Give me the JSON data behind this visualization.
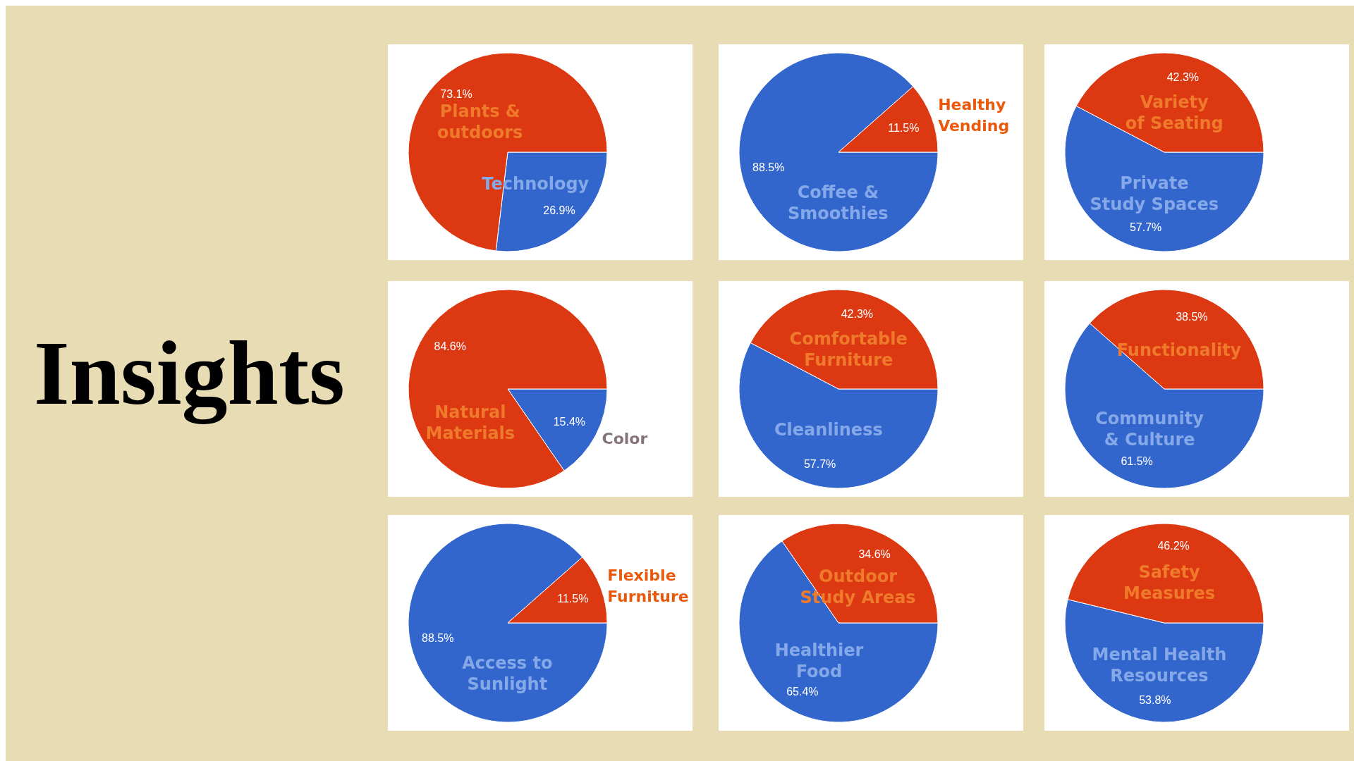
{
  "chart_data": [
    {
      "type": "other",
      "title": "Insights"
    },
    {
      "type": "pie",
      "categories": [
        "Technology",
        "Plants & outdoors"
      ],
      "values": [
        26.9,
        73.1
      ],
      "value_labels": [
        "26.9%",
        "73.1%"
      ],
      "colors": [
        "#3366cc",
        "#dc3912"
      ]
    },
    {
      "type": "pie",
      "categories": [
        "Coffee & Smoothies",
        "Healthy Vending"
      ],
      "values": [
        88.5,
        11.5
      ],
      "value_labels": [
        "88.5%",
        "11.5%"
      ],
      "colors": [
        "#3366cc",
        "#dc3912"
      ]
    },
    {
      "type": "pie",
      "categories": [
        "Private Study Spaces",
        "Variety of Seating"
      ],
      "values": [
        57.7,
        42.3
      ],
      "value_labels": [
        "57.7%",
        "42.3%"
      ],
      "colors": [
        "#3366cc",
        "#dc3912"
      ]
    },
    {
      "type": "pie",
      "categories": [
        "Color",
        "Natural Materials"
      ],
      "values": [
        15.4,
        84.6
      ],
      "value_labels": [
        "15.4%",
        "84.6%"
      ],
      "colors": [
        "#3366cc",
        "#dc3912"
      ]
    },
    {
      "type": "pie",
      "categories": [
        "Cleanliness",
        "Comfortable Furniture"
      ],
      "values": [
        57.7,
        42.3
      ],
      "value_labels": [
        "57.7%",
        "42.3%"
      ],
      "colors": [
        "#3366cc",
        "#dc3912"
      ]
    },
    {
      "type": "pie",
      "categories": [
        "Community & Culture",
        "Functionality"
      ],
      "values": [
        61.5,
        38.5
      ],
      "value_labels": [
        "61.5%",
        "38.5%"
      ],
      "colors": [
        "#3366cc",
        "#dc3912"
      ]
    },
    {
      "type": "pie",
      "categories": [
        "Access to Sunlight",
        "Flexible Furniture"
      ],
      "values": [
        88.5,
        11.5
      ],
      "value_labels": [
        "88.5%",
        "11.5%"
      ],
      "colors": [
        "#3366cc",
        "#dc3912"
      ]
    },
    {
      "type": "pie",
      "categories": [
        "Healthier Food",
        "Outdoor Study Areas"
      ],
      "values": [
        65.4,
        34.6
      ],
      "value_labels": [
        "65.4%",
        "34.6%"
      ],
      "colors": [
        "#3366cc",
        "#dc3912"
      ]
    },
    {
      "type": "pie",
      "categories": [
        "Mental Health Resources",
        "Safety Measures"
      ],
      "values": [
        53.8,
        46.2
      ],
      "value_labels": [
        "53.8%",
        "46.2%"
      ],
      "colors": [
        "#3366cc",
        "#dc3912"
      ]
    }
  ]
}
